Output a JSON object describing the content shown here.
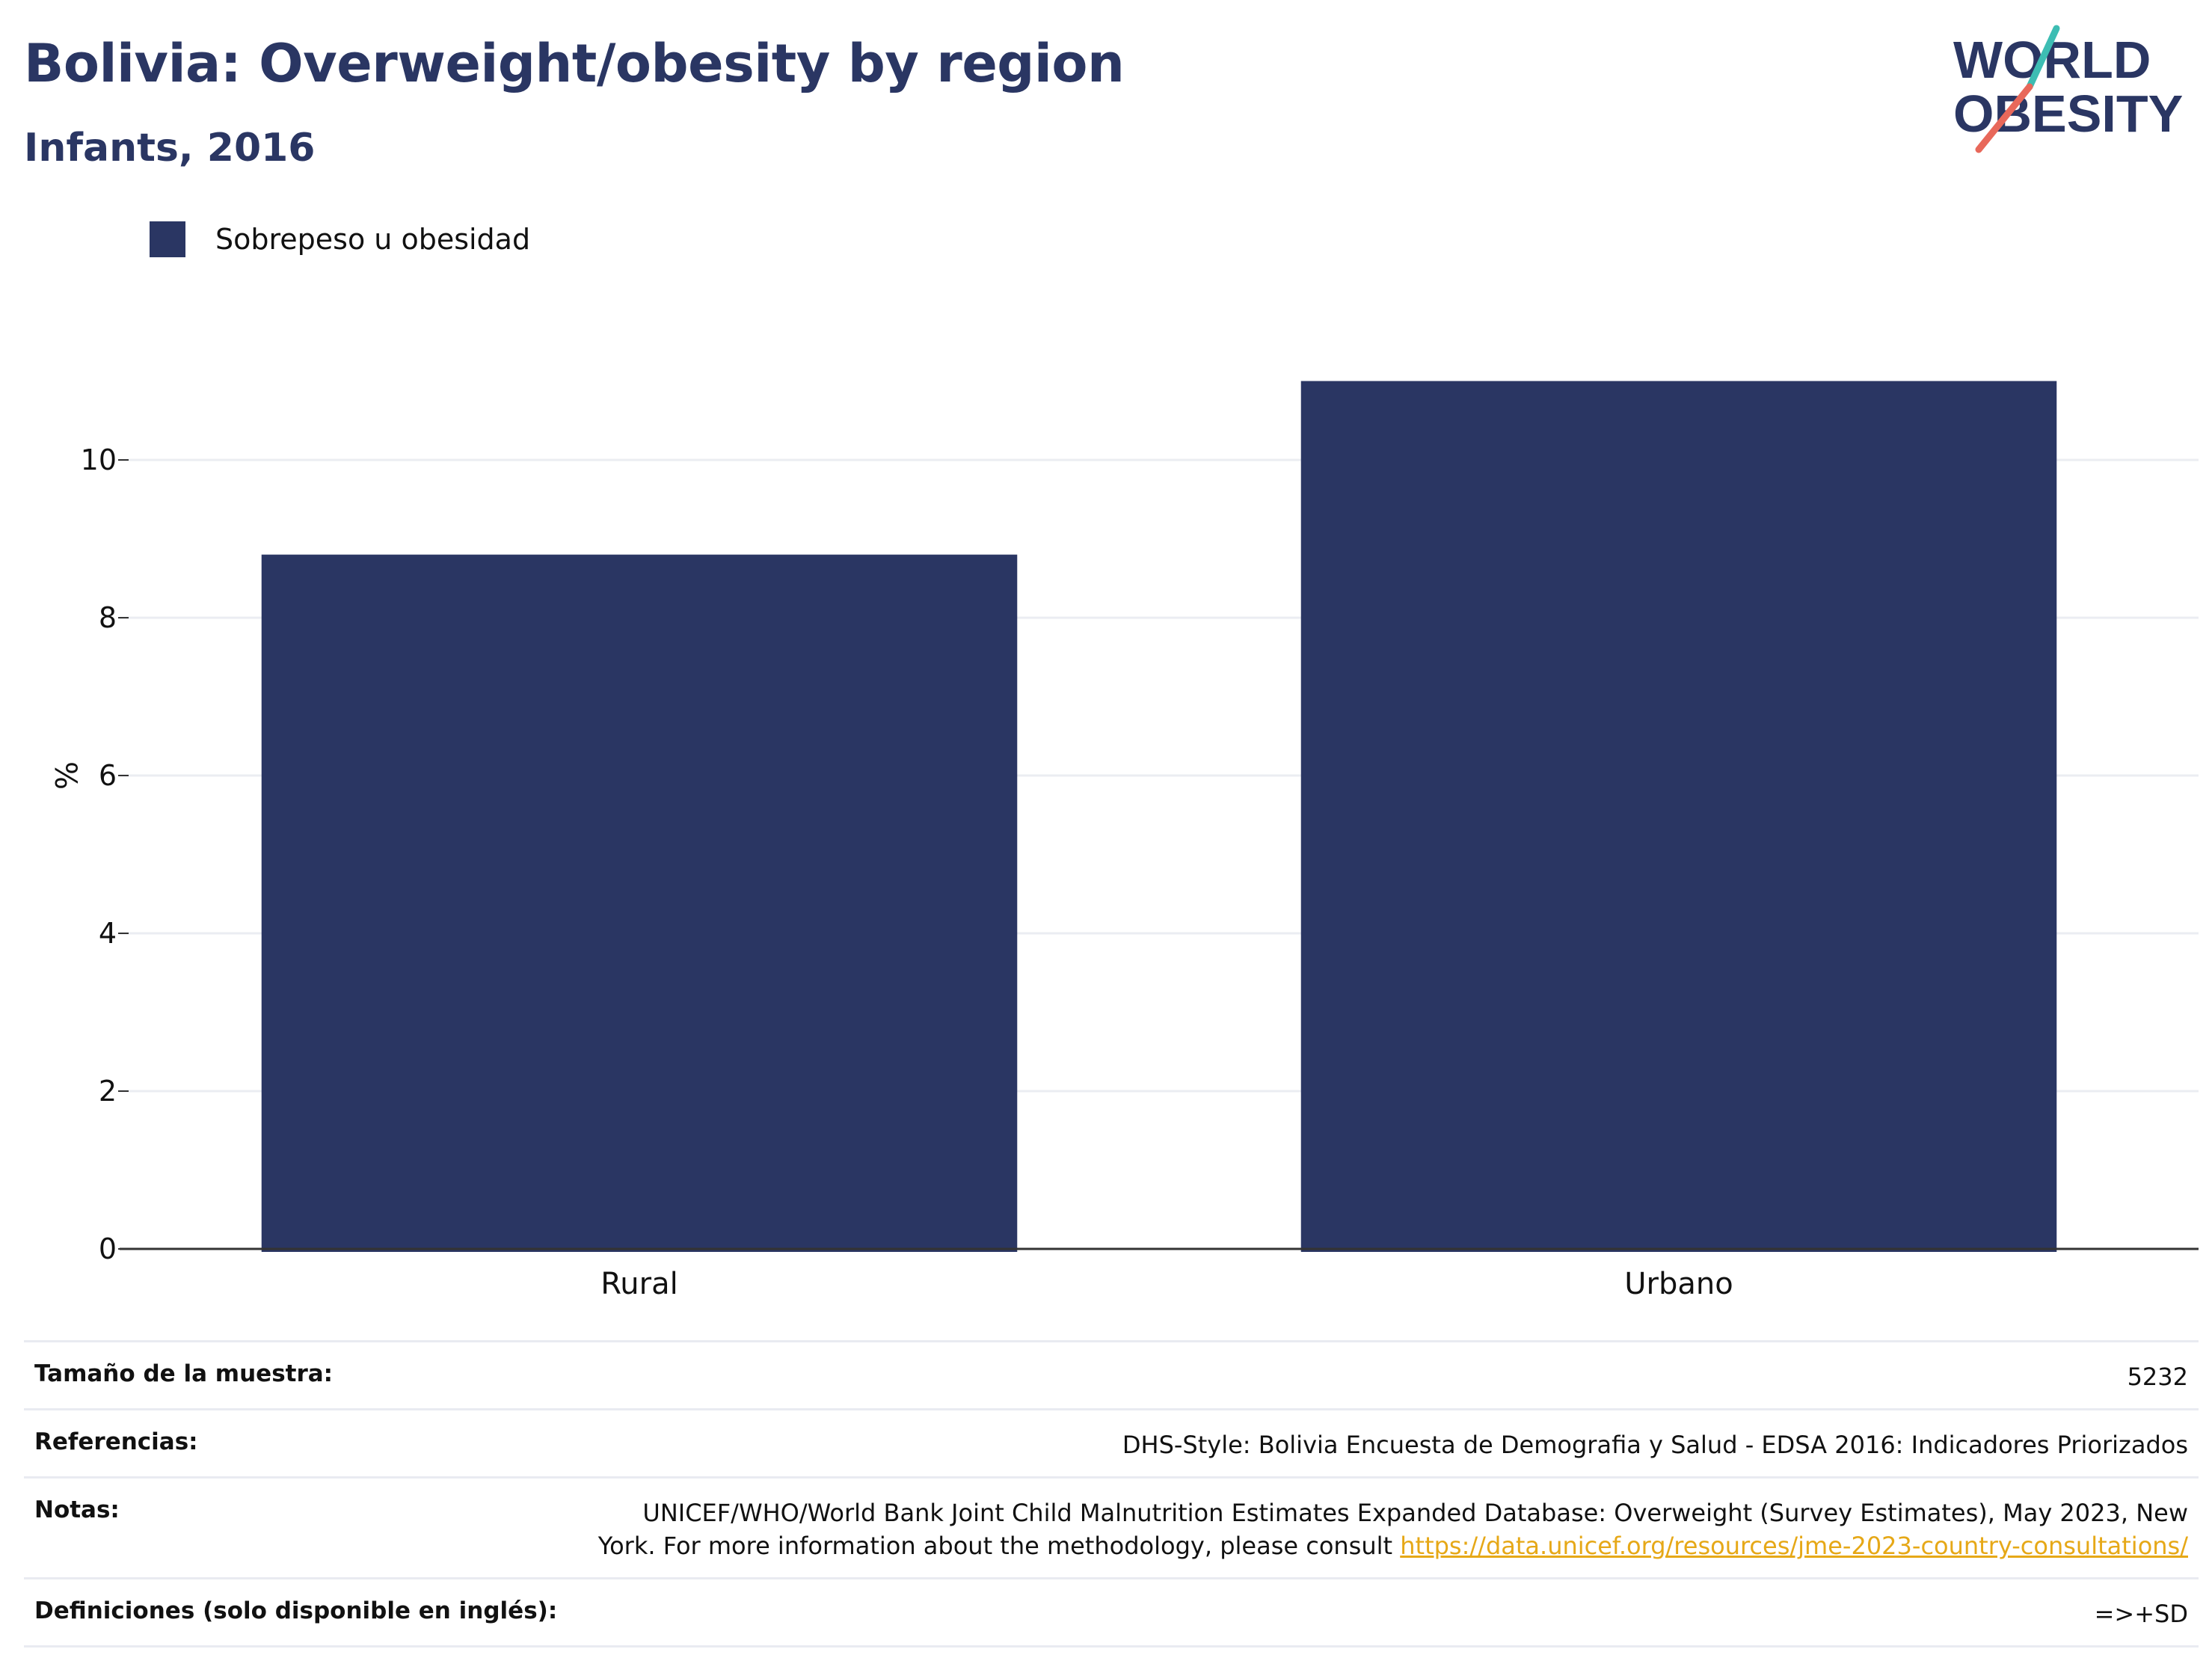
{
  "title": "Bolivia: Overweight/obesity by region",
  "subtitle": "Infants, 2016",
  "logo": {
    "line1": "WORLD",
    "line2": "OBESITY"
  },
  "legend": {
    "label": "Sobrepeso u obesidad"
  },
  "colors": {
    "bar": "#2a3663",
    "title": "#2a3663",
    "link": "#e6a817",
    "logo_teal": "#3dbdb3",
    "logo_red": "#e8685a"
  },
  "chart_data": {
    "type": "bar",
    "categories": [
      "Rural",
      "Urbano"
    ],
    "series": [
      {
        "name": "Sobrepeso u obesidad",
        "values": [
          8.8,
          11.0
        ]
      }
    ],
    "ylabel": "%",
    "xlabel": "",
    "ylim": [
      0,
      12
    ],
    "yticks": [
      0,
      2,
      4,
      6,
      8,
      10
    ],
    "grid": true,
    "legend_position": "top-left"
  },
  "notes": {
    "sample_label": "Tamaño de la muestra:",
    "sample_value": "5232",
    "refs_label": "Referencias:",
    "refs_value": "DHS-Style: Bolivia Encuesta de Demografia y Salud - EDSA 2016: Indicadores Priorizados",
    "notes_label": "Notas:",
    "notes_line1": "UNICEF/WHO/World Bank Joint Child Malnutrition Estimates Expanded Database: Overweight (Survey Estimates), May 2023, New",
    "notes_line2": "York. For more information about the methodology, please consult",
    "notes_link": "https://data.unicef.org/resources/jme-2023-country-consultations/",
    "defs_label": "Definiciones (solo disponible en inglés):",
    "defs_value": "=>+SD"
  }
}
